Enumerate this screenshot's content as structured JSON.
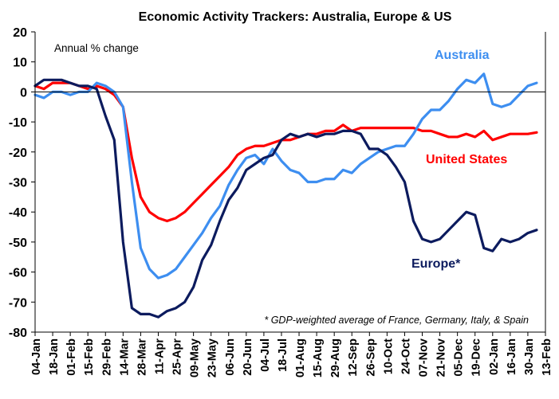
{
  "chart_data": {
    "type": "line",
    "title": "Economic Activity Trackers: Australia, Europe & US",
    "ylabel_note": "Annual % change",
    "footnote": "* GDP-weighted average of France, Germany, Italy, & Spain",
    "ylim": [
      -80,
      20
    ],
    "yticks": [
      20,
      10,
      0,
      -10,
      -20,
      -30,
      -40,
      -50,
      -60,
      -70,
      -80
    ],
    "x_tick_labels": [
      "04-Jan",
      "18-Jan",
      "01-Feb",
      "15-Feb",
      "29-Feb",
      "14-Mar",
      "28-Mar",
      "11-Apr",
      "25-Apr",
      "09-May",
      "23-May",
      "06-Jun",
      "20-Jun",
      "04-Jul",
      "18-Jul",
      "01-Aug",
      "15-Aug",
      "29-Aug",
      "12-Sep",
      "26-Sep",
      "10-Oct",
      "24-Oct",
      "07-Nov",
      "21-Nov",
      "05-Dec",
      "19-Dec",
      "02-Jan",
      "16-Jan",
      "30-Jan",
      "13-Feb"
    ],
    "x_step": 0.5,
    "grid": false,
    "series": [
      {
        "name": "Australia",
        "color": "#3d8ef0",
        "values": [
          -1,
          -2,
          0,
          0,
          -1,
          0,
          0,
          3,
          2,
          0,
          -5,
          -30,
          -52,
          -59,
          -62,
          -61,
          -59,
          -55,
          -51,
          -47,
          -42,
          -38,
          -31,
          -26,
          -22,
          -21,
          -24,
          -19,
          -23,
          -26,
          -27,
          -30,
          -30,
          -29,
          -29,
          -26,
          -27,
          -24,
          -22,
          -20,
          -19,
          -18,
          -18,
          -14,
          -9,
          -6,
          -6,
          -3,
          1,
          4,
          3,
          6,
          -4,
          -5,
          -4,
          -1,
          2,
          3
        ]
      },
      {
        "name": "United States",
        "color": "#ff0000",
        "values": [
          2,
          1,
          3,
          3,
          3,
          2,
          1,
          2,
          1,
          -1,
          -5,
          -22,
          -35,
          -40,
          -42,
          -43,
          -42,
          -40,
          -37,
          -34,
          -31,
          -28,
          -25,
          -21,
          -19,
          -18,
          -18,
          -17,
          -16,
          -16,
          -15,
          -14,
          -14,
          -13,
          -13,
          -11,
          -13,
          -12,
          -12,
          -12,
          -12,
          -12,
          -12,
          -12,
          -13,
          -13,
          -14,
          -15,
          -15,
          -14,
          -15,
          -13,
          -16,
          -15,
          -14,
          -14,
          -14,
          -13.5
        ]
      },
      {
        "name": "Europe*",
        "color": "#0c1b5e",
        "values": [
          2,
          4,
          4,
          4,
          3,
          2,
          2,
          1,
          -8,
          -16,
          -50,
          -72,
          -74,
          -74,
          -75,
          -73,
          -72,
          -70,
          -65,
          -56,
          -51,
          -43,
          -36,
          -32,
          -26,
          -24,
          -22,
          -21,
          -16,
          -14,
          -15,
          -14,
          -15,
          -14,
          -14,
          -13,
          -13,
          -14,
          -19,
          -19,
          -21,
          -25,
          -30,
          -43,
          -49,
          -50,
          -49,
          -46,
          -43,
          -40,
          -41,
          -52,
          -53,
          -49,
          -50,
          -49,
          -47,
          -46
        ]
      }
    ]
  }
}
